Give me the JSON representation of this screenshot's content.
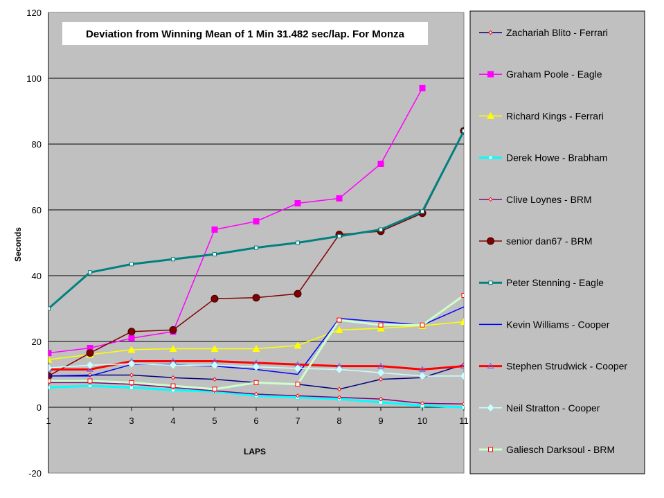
{
  "chart_data": {
    "type": "line",
    "title": "Deviation from Winning Mean of 1 Min 31.482 sec/lap. For Monza",
    "xlabel": "LAPS",
    "ylabel": "Seconds",
    "x": [
      1,
      2,
      3,
      4,
      5,
      6,
      7,
      8,
      9,
      10,
      11
    ],
    "xlim": [
      1,
      11
    ],
    "ylim": [
      -20,
      120
    ],
    "yticks": [
      -20,
      0,
      20,
      40,
      60,
      80,
      100,
      120
    ],
    "grid": true,
    "legend_position": "right",
    "colors": {
      "plot_background": "#c0c0c0",
      "legend_background": "#c0c0c0"
    },
    "series": [
      {
        "name": "Zachariah Blito - Ferrari",
        "color": "#000080",
        "marker": "small-diamond",
        "width": 1.5,
        "values": [
          9.5,
          9.8,
          9.8,
          9.0,
          8.5,
          7.5,
          7.0,
          5.5,
          8.5,
          9.0,
          13.0
        ]
      },
      {
        "name": "Graham Poole - Eagle",
        "color": "#ff00ff",
        "marker": "square",
        "width": 1.5,
        "values": [
          16.5,
          18.0,
          21.0,
          23.0,
          54.0,
          56.5,
          62.0,
          63.5,
          74.0,
          97.0,
          null
        ]
      },
      {
        "name": "Richard Kings - Ferrari",
        "color": "#ffff00",
        "marker": "triangle",
        "width": 1.5,
        "values": [
          14.5,
          16.0,
          17.5,
          17.8,
          17.8,
          17.8,
          18.8,
          23.5,
          24.0,
          24.8,
          26.0
        ]
      },
      {
        "name": "Derek Howe - Brabham",
        "color": "#00ffff",
        "marker": "small-square",
        "width": 3,
        "values": [
          6.0,
          6.5,
          6.0,
          5.2,
          4.8,
          3.5,
          3.0,
          2.5,
          1.5,
          0.5,
          0.0
        ]
      },
      {
        "name": "Clive Loynes - BRM",
        "color": "#800080",
        "marker": "small-diamond",
        "width": 1.5,
        "values": [
          7.5,
          7.5,
          7.0,
          6.0,
          5.0,
          4.0,
          3.5,
          3.0,
          2.5,
          1.2,
          1.0
        ]
      },
      {
        "name": "senior dan67 - BRM",
        "color": "#800000",
        "marker": "circle",
        "width": 1.5,
        "values": [
          9.5,
          16.5,
          23.0,
          23.5,
          33.0,
          33.3,
          34.5,
          52.5,
          53.5,
          59.0,
          84.0
        ]
      },
      {
        "name": "Peter Stenning - Eagle",
        "color": "#008080",
        "marker": "small-square",
        "width": 3,
        "values": [
          30.0,
          41.0,
          43.5,
          45.0,
          46.5,
          48.5,
          50.0,
          52.0,
          54.0,
          59.5,
          84.0
        ]
      },
      {
        "name": "Kevin Williams - Cooper",
        "color": "#0000ff",
        "marker": "none",
        "width": 1.5,
        "values": [
          9.5,
          9.5,
          13.0,
          13.0,
          12.5,
          11.5,
          10.0,
          27.0,
          26.0,
          25.0,
          30.5
        ]
      },
      {
        "name": "Stephen Strudwick - Cooper",
        "color": "#ff0000",
        "marker": "triangle-outline",
        "width": 3,
        "values": [
          11.5,
          11.5,
          14.0,
          14.0,
          14.0,
          13.5,
          13.0,
          12.5,
          12.5,
          11.5,
          12.5
        ]
      },
      {
        "name": "Neil Stratton - Cooper",
        "color": "#ccffff",
        "marker": "diamond",
        "width": 1.5,
        "values": [
          12.0,
          12.8,
          13.2,
          12.8,
          12.8,
          12.3,
          11.8,
          11.5,
          10.5,
          9.5,
          9.5
        ]
      },
      {
        "name": "Galiesch Darksoul - BRM",
        "color": "#ccffcc",
        "marker": "square-outline",
        "width": 3,
        "values": [
          8.0,
          8.0,
          7.5,
          6.5,
          5.5,
          7.5,
          7.0,
          26.5,
          25.0,
          25.0,
          34.0
        ]
      }
    ]
  }
}
